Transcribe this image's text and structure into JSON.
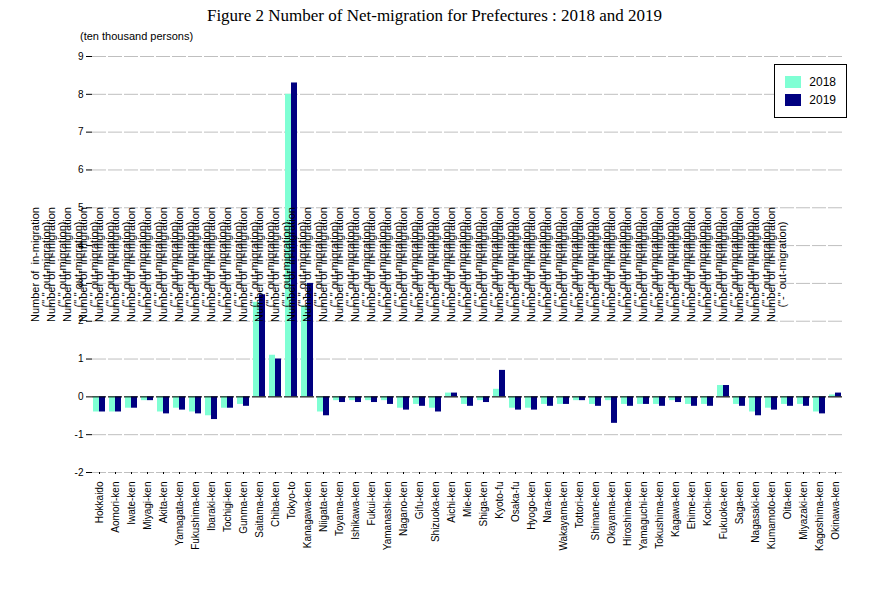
{
  "chart_data": {
    "type": "bar",
    "title": "Figure 2  Number of Net-migration for Prefectures : 2018 and 2019",
    "ylabel": "Number of  in-migration\n(\"-\" out-migration)",
    "annotations": [
      "(ten thousand persons)"
    ],
    "categories": [
      "Hokkaido",
      "Aomori-ken",
      "Iwate-ken",
      "Miyagi-ken",
      "Akita-ken",
      "Yamagata-ken",
      "Fukushima-ken",
      "Ibaraki-ken",
      "Tochigi-ken",
      "Gunma-ken",
      "Saitama-ken",
      "Chiba-ken",
      "Tokyo-to",
      "Kanagawa-ken",
      "Niigata-ken",
      "Toyama-ken",
      "Ishikawa-ken",
      "Fukui-ken",
      "Yamanashi-ken",
      "Nagano-ken",
      "Gifu-ken",
      "Shizuoka-ken",
      "Aichi-ken",
      "Mie-ken",
      "Shiga-ken",
      "Kyoto-fu",
      "Osaka-fu",
      "Hyogo-ken",
      "Nara-ken",
      "Wakayama-ken",
      "Tottori-ken",
      "Shimane-ken",
      "Okayama-ken",
      "Hiroshima-ken",
      "Yamaguchi-ken",
      "Tokushima-ken",
      "Kagawa-ken",
      "Ehime-ken",
      "Kochi-ken",
      "Fukuoka-ken",
      "Saga-ken",
      "Nagasaki-ken",
      "Kumamoto-ken",
      "Oita-ken",
      "Miyazaki-ken",
      "Kagoshima-ken",
      "Okinawa-ken"
    ],
    "series": [
      {
        "name": "2018",
        "color": "#7FFFD4",
        "values": [
          -0.4,
          -0.4,
          -0.3,
          -0.1,
          -0.4,
          -0.3,
          -0.4,
          -0.5,
          -0.3,
          -0.2,
          2.5,
          1.1,
          8.0,
          2.4,
          -0.4,
          -0.1,
          -0.1,
          -0.1,
          -0.1,
          -0.3,
          -0.2,
          -0.3,
          0.1,
          -0.2,
          -0.1,
          0.2,
          -0.3,
          -0.3,
          -0.2,
          -0.2,
          -0.1,
          -0.2,
          -0.1,
          -0.2,
          -0.2,
          -0.2,
          -0.1,
          -0.2,
          -0.2,
          0.3,
          -0.2,
          -0.4,
          -0.3,
          -0.2,
          -0.2,
          -0.4,
          0.05
        ]
      },
      {
        "name": "2019",
        "color": "#000080",
        "values": [
          -0.4,
          -0.4,
          -0.3,
          -0.1,
          -0.45,
          -0.35,
          -0.45,
          -0.6,
          -0.3,
          -0.25,
          2.7,
          1.0,
          8.3,
          3.0,
          -0.5,
          -0.15,
          -0.15,
          -0.15,
          -0.2,
          -0.35,
          -0.25,
          -0.4,
          0.1,
          -0.25,
          -0.15,
          0.7,
          -0.35,
          -0.35,
          -0.25,
          -0.2,
          -0.1,
          -0.25,
          -0.7,
          -0.25,
          -0.2,
          -0.25,
          -0.15,
          -0.25,
          -0.25,
          0.3,
          -0.25,
          -0.5,
          -0.35,
          -0.25,
          -0.25,
          -0.45,
          0.1
        ]
      }
    ],
    "ylim": [
      -2,
      9
    ],
    "yticks": [
      -2,
      -1,
      0,
      1,
      2,
      3,
      4,
      5,
      6,
      7,
      8,
      9
    ],
    "grid": true,
    "legend": "upper right"
  }
}
